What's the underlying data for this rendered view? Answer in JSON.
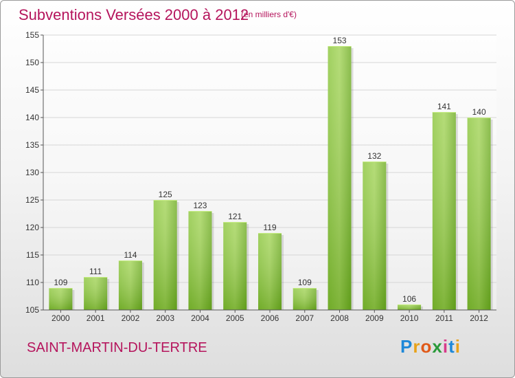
{
  "header": {
    "title": "Subventions Versées 2000 à 2012",
    "subtitle": "(en milliers d'€)"
  },
  "footer": {
    "commune": "SAINT-MARTIN-DU-TERTRE",
    "logo": "Proxiti"
  },
  "colors": {
    "title": "#b5145c",
    "bar_light": "#a6d85a",
    "bar_dark": "#62a01a"
  },
  "chart_data": {
    "type": "bar",
    "title": "Subventions Versées 2000 à 2012",
    "subtitle": "(en milliers d'€)",
    "xlabel": "",
    "ylabel": "",
    "categories": [
      "2000",
      "2001",
      "2002",
      "2003",
      "2004",
      "2005",
      "2006",
      "2007",
      "2008",
      "2009",
      "2010",
      "2011",
      "2012"
    ],
    "values": [
      109,
      111,
      114,
      125,
      123,
      121,
      119,
      109,
      153,
      132,
      106,
      141,
      140
    ],
    "ylim": [
      105,
      155
    ],
    "yticks": [
      105,
      110,
      115,
      120,
      125,
      130,
      135,
      140,
      145,
      150,
      155
    ],
    "grid": true
  }
}
